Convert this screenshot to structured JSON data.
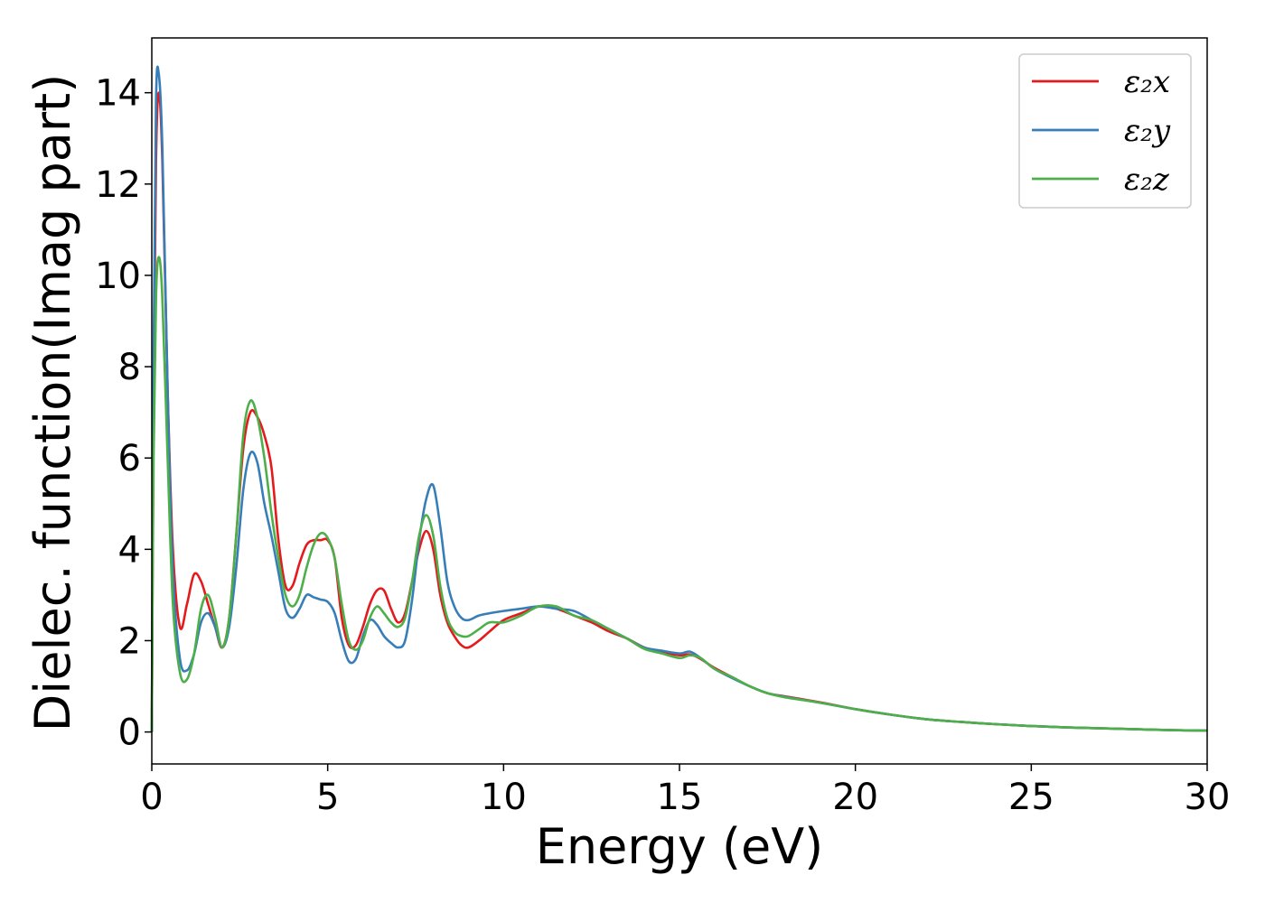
{
  "chart_data": {
    "type": "line",
    "xlabel": "Energy (eV)",
    "ylabel": "Dielec. function(Imag part)",
    "xlim": [
      0,
      30
    ],
    "ylim": [
      -0.7,
      15.2
    ],
    "xticks": [
      0,
      5,
      10,
      15,
      20,
      25,
      30
    ],
    "yticks": [
      0,
      2,
      4,
      6,
      8,
      10,
      12,
      14
    ],
    "grid": false,
    "legend": "top-right",
    "series": [
      {
        "name": "ε₂x",
        "color": "#e41a1c",
        "x": [
          0,
          0.05,
          0.12,
          0.2,
          0.3,
          0.45,
          0.6,
          0.8,
          1.0,
          1.2,
          1.4,
          1.6,
          1.8,
          2.0,
          2.2,
          2.4,
          2.6,
          2.8,
          3.0,
          3.2,
          3.4,
          3.6,
          3.8,
          4.0,
          4.2,
          4.4,
          4.6,
          4.8,
          5.0,
          5.2,
          5.4,
          5.6,
          5.8,
          6.0,
          6.2,
          6.4,
          6.6,
          6.8,
          7.0,
          7.2,
          7.4,
          7.6,
          7.8,
          8.0,
          8.2,
          8.4,
          8.6,
          8.8,
          9.0,
          9.3,
          9.6,
          10.0,
          10.5,
          11.0,
          11.5,
          12.0,
          12.5,
          13.0,
          13.5,
          14.0,
          14.5,
          15.0,
          15.3,
          15.6,
          16.0,
          16.5,
          17.0,
          17.5,
          18.0,
          19.0,
          20.0,
          21.0,
          22.0,
          23.0,
          24.0,
          25.0,
          26.0,
          27.0,
          28.0,
          29.0,
          30.0
        ],
        "y": [
          0.0,
          7.0,
          12.5,
          14.0,
          12.5,
          7.5,
          4.0,
          2.3,
          2.8,
          3.45,
          3.3,
          2.8,
          2.3,
          1.85,
          2.5,
          4.3,
          6.2,
          7.0,
          6.9,
          6.5,
          5.8,
          4.2,
          3.2,
          3.2,
          3.7,
          4.1,
          4.2,
          4.2,
          4.2,
          3.8,
          2.5,
          1.9,
          1.9,
          2.3,
          2.8,
          3.1,
          3.1,
          2.7,
          2.4,
          2.6,
          3.3,
          4.0,
          4.4,
          4.0,
          3.0,
          2.4,
          2.1,
          1.9,
          1.85,
          2.0,
          2.2,
          2.45,
          2.6,
          2.75,
          2.7,
          2.55,
          2.4,
          2.2,
          2.05,
          1.85,
          1.75,
          1.68,
          1.7,
          1.6,
          1.4,
          1.2,
          1.0,
          0.85,
          0.78,
          0.65,
          0.5,
          0.38,
          0.28,
          0.22,
          0.17,
          0.13,
          0.1,
          0.08,
          0.06,
          0.04,
          0.03
        ]
      },
      {
        "name": "ε₂y",
        "color": "#377eb8",
        "x": [
          0,
          0.05,
          0.12,
          0.2,
          0.3,
          0.45,
          0.6,
          0.8,
          1.0,
          1.2,
          1.4,
          1.6,
          1.8,
          2.0,
          2.2,
          2.4,
          2.6,
          2.8,
          3.0,
          3.2,
          3.4,
          3.6,
          3.8,
          4.0,
          4.2,
          4.4,
          4.6,
          4.8,
          5.0,
          5.2,
          5.4,
          5.6,
          5.8,
          6.0,
          6.2,
          6.4,
          6.6,
          6.8,
          7.0,
          7.2,
          7.4,
          7.6,
          7.8,
          8.0,
          8.2,
          8.4,
          8.6,
          8.8,
          9.0,
          9.3,
          9.6,
          10.0,
          10.5,
          11.0,
          11.5,
          12.0,
          12.5,
          13.0,
          13.5,
          14.0,
          14.5,
          15.0,
          15.3,
          15.6,
          16.0,
          16.5,
          17.0,
          17.5,
          18.0,
          19.0,
          20.0,
          21.0,
          22.0,
          23.0,
          24.0,
          25.0,
          26.0,
          27.0,
          28.0,
          29.0,
          30.0
        ],
        "y": [
          0.0,
          8.0,
          13.8,
          14.4,
          12.8,
          7.5,
          3.5,
          1.6,
          1.35,
          1.7,
          2.4,
          2.6,
          2.3,
          1.85,
          2.3,
          3.6,
          5.3,
          6.1,
          5.9,
          5.0,
          4.3,
          3.5,
          2.7,
          2.5,
          2.7,
          3.0,
          2.95,
          2.9,
          2.85,
          2.6,
          2.0,
          1.55,
          1.6,
          2.1,
          2.45,
          2.35,
          2.1,
          1.95,
          1.85,
          2.0,
          2.9,
          4.2,
          5.1,
          5.4,
          4.5,
          3.3,
          2.75,
          2.5,
          2.45,
          2.55,
          2.6,
          2.65,
          2.7,
          2.75,
          2.7,
          2.65,
          2.45,
          2.25,
          2.05,
          1.85,
          1.78,
          1.72,
          1.76,
          1.62,
          1.38,
          1.18,
          1.0,
          0.85,
          0.77,
          0.64,
          0.5,
          0.38,
          0.28,
          0.22,
          0.17,
          0.13,
          0.1,
          0.08,
          0.06,
          0.04,
          0.03
        ]
      },
      {
        "name": "ε₂z",
        "color": "#4daf4a",
        "x": [
          0,
          0.05,
          0.12,
          0.2,
          0.3,
          0.45,
          0.6,
          0.8,
          1.0,
          1.2,
          1.4,
          1.6,
          1.8,
          2.0,
          2.2,
          2.4,
          2.6,
          2.8,
          3.0,
          3.2,
          3.4,
          3.6,
          3.8,
          4.0,
          4.2,
          4.4,
          4.6,
          4.8,
          5.0,
          5.2,
          5.4,
          5.6,
          5.8,
          6.0,
          6.2,
          6.4,
          6.6,
          6.8,
          7.0,
          7.2,
          7.4,
          7.6,
          7.8,
          8.0,
          8.2,
          8.4,
          8.6,
          8.8,
          9.0,
          9.3,
          9.6,
          10.0,
          10.5,
          11.0,
          11.5,
          12.0,
          12.5,
          13.0,
          13.5,
          14.0,
          14.5,
          15.0,
          15.3,
          15.6,
          16.0,
          16.5,
          17.0,
          17.5,
          18.0,
          19.0,
          20.0,
          21.0,
          22.0,
          23.0,
          24.0,
          25.0,
          26.0,
          27.0,
          28.0,
          29.0,
          30.0
        ],
        "y": [
          0.0,
          6.0,
          9.5,
          10.4,
          9.5,
          6.0,
          2.8,
          1.3,
          1.15,
          1.7,
          2.7,
          3.0,
          2.5,
          1.85,
          2.5,
          4.3,
          6.5,
          7.25,
          6.9,
          6.0,
          4.8,
          3.8,
          3.0,
          2.75,
          3.0,
          3.6,
          4.1,
          4.35,
          4.25,
          3.8,
          2.8,
          2.0,
          1.8,
          2.0,
          2.5,
          2.75,
          2.6,
          2.4,
          2.3,
          2.5,
          3.3,
          4.3,
          4.75,
          4.3,
          3.2,
          2.5,
          2.2,
          2.1,
          2.1,
          2.25,
          2.4,
          2.4,
          2.55,
          2.75,
          2.75,
          2.55,
          2.45,
          2.25,
          2.05,
          1.82,
          1.72,
          1.62,
          1.68,
          1.62,
          1.38,
          1.2,
          1.0,
          0.85,
          0.76,
          0.64,
          0.5,
          0.38,
          0.28,
          0.22,
          0.17,
          0.13,
          0.1,
          0.08,
          0.06,
          0.04,
          0.03
        ]
      }
    ]
  }
}
